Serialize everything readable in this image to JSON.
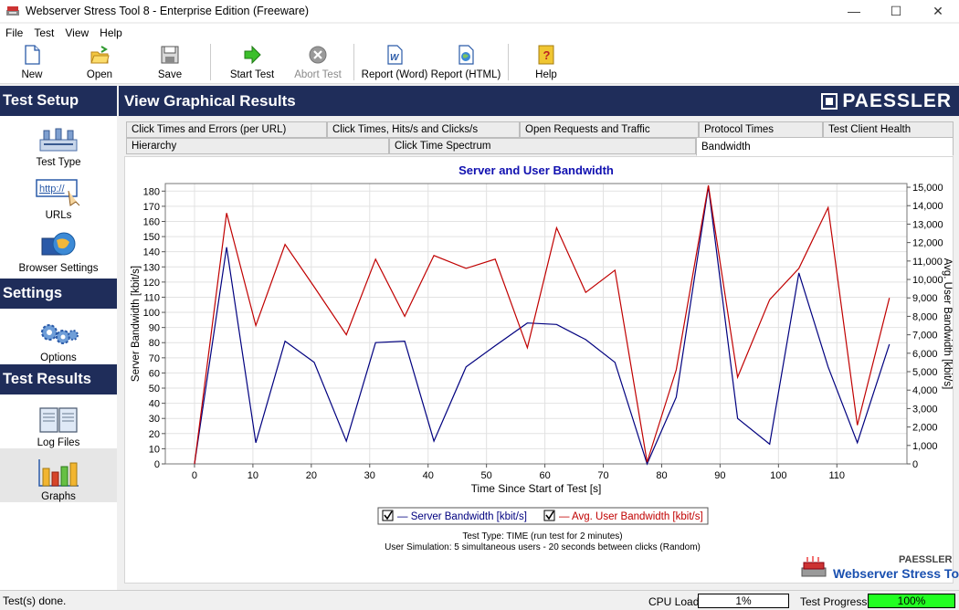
{
  "window": {
    "title": "Webserver Stress Tool 8 - Enterprise Edition (Freeware)",
    "minimize": "—",
    "maximize": "☐",
    "close": "✕"
  },
  "menu": [
    "File",
    "Test",
    "View",
    "Help"
  ],
  "toolbar": {
    "new": "New",
    "open": "Open",
    "save": "Save",
    "start_test": "Start Test",
    "abort_test": "Abort Test",
    "report_word": "Report (Word)",
    "report_html": "Report (HTML)",
    "help": "Help"
  },
  "sidebar": {
    "test_setup": "Test Setup",
    "test_type": "Test Type",
    "urls": "URLs",
    "browser_settings": "Browser Settings",
    "settings": "Settings",
    "options": "Options",
    "test_results": "Test Results",
    "log_files": "Log Files",
    "graphs": "Graphs"
  },
  "main": {
    "title": "View Graphical Results",
    "brand": "PAESSLER"
  },
  "tabs": {
    "row1": [
      "Click Times and Errors (per URL)",
      "Click Times, Hits/s and Clicks/s",
      "Open Requests and Traffic",
      "Protocol Times",
      "Test Client Health"
    ],
    "row2": [
      "Hierarchy",
      "Click Time Spectrum",
      "Bandwidth"
    ],
    "active": "Bandwidth"
  },
  "chart_data": {
    "type": "line",
    "title": "Server and User Bandwidth",
    "xlabel": "Time Since Start of Test [s]",
    "ylabel": "Server Bandwidth [kbit/s]",
    "y2label": "Avg. User Bandwidth [kbit/s]",
    "xlim": [
      -5,
      122
    ],
    "ylim": [
      0,
      185
    ],
    "y2lim": [
      0,
      15200
    ],
    "x_ticks": [
      0,
      10,
      20,
      30,
      40,
      50,
      60,
      70,
      80,
      90,
      100,
      110
    ],
    "y_ticks": [
      0,
      10,
      20,
      30,
      40,
      50,
      60,
      70,
      80,
      90,
      100,
      110,
      120,
      130,
      140,
      150,
      160,
      170,
      180
    ],
    "y2_ticks": [
      "0",
      "1,000",
      "2,000",
      "3,000",
      "4,000",
      "5,000",
      "6,000",
      "7,000",
      "8,000",
      "9,000",
      "10,000",
      "11,000",
      "12,000",
      "13,000",
      "14,000",
      "15,000"
    ],
    "y2_tick_values": [
      0,
      1000,
      2000,
      3000,
      4000,
      5000,
      6000,
      7000,
      8000,
      9000,
      10000,
      11000,
      12000,
      13000,
      14000,
      15000
    ],
    "grid": true,
    "series": [
      {
        "name": "Server Bandwidth [kbit/s]",
        "axis": "left",
        "color": "#00007f",
        "x": [
          0,
          5.5,
          10.5,
          15.5,
          20.5,
          26,
          31,
          36,
          41,
          46.5,
          51.5,
          57,
          62,
          67,
          72,
          77.5,
          82.5,
          88,
          93,
          98.5,
          103.5,
          108.5,
          113.5,
          119
        ],
        "values": [
          0,
          143,
          14,
          81,
          67,
          15,
          80,
          81,
          15,
          64,
          78,
          93,
          92,
          82,
          67,
          0,
          44,
          183,
          30,
          13,
          126,
          64,
          14,
          79
        ]
      },
      {
        "name": "Avg. User Bandwidth [kbit/s]",
        "axis": "right",
        "color": "#c00000",
        "x": [
          0,
          5.5,
          10.5,
          15.5,
          20.5,
          26,
          31,
          36,
          41,
          46.5,
          51.5,
          57,
          62,
          67,
          72,
          77.5,
          82.5,
          88,
          93,
          98.5,
          103.5,
          108.5,
          113.5,
          119
        ],
        "values": [
          0,
          13600,
          7500,
          11900,
          9600,
          7000,
          11100,
          8000,
          11300,
          10600,
          11100,
          6300,
          12800,
          9300,
          10500,
          100,
          5100,
          15100,
          4700,
          8900,
          10600,
          13900,
          2100,
          9000
        ]
      }
    ],
    "legend_position": "bottom"
  },
  "footer": {
    "test_type": "Test Type: TIME (run test for 2 minutes)",
    "user_sim": "User Simulation: 5 simultaneous users - 20 seconds between clicks (Random)",
    "logo_brand": "PAESSLER",
    "logo_product": "Webserver Stress Tool"
  },
  "status": {
    "text": "Test(s) done.",
    "cpu_label": "CPU Load:",
    "cpu_value": "1%",
    "progress_label": "Test Progress:",
    "progress_value": "100%",
    "progress_fraction": 1.0
  }
}
